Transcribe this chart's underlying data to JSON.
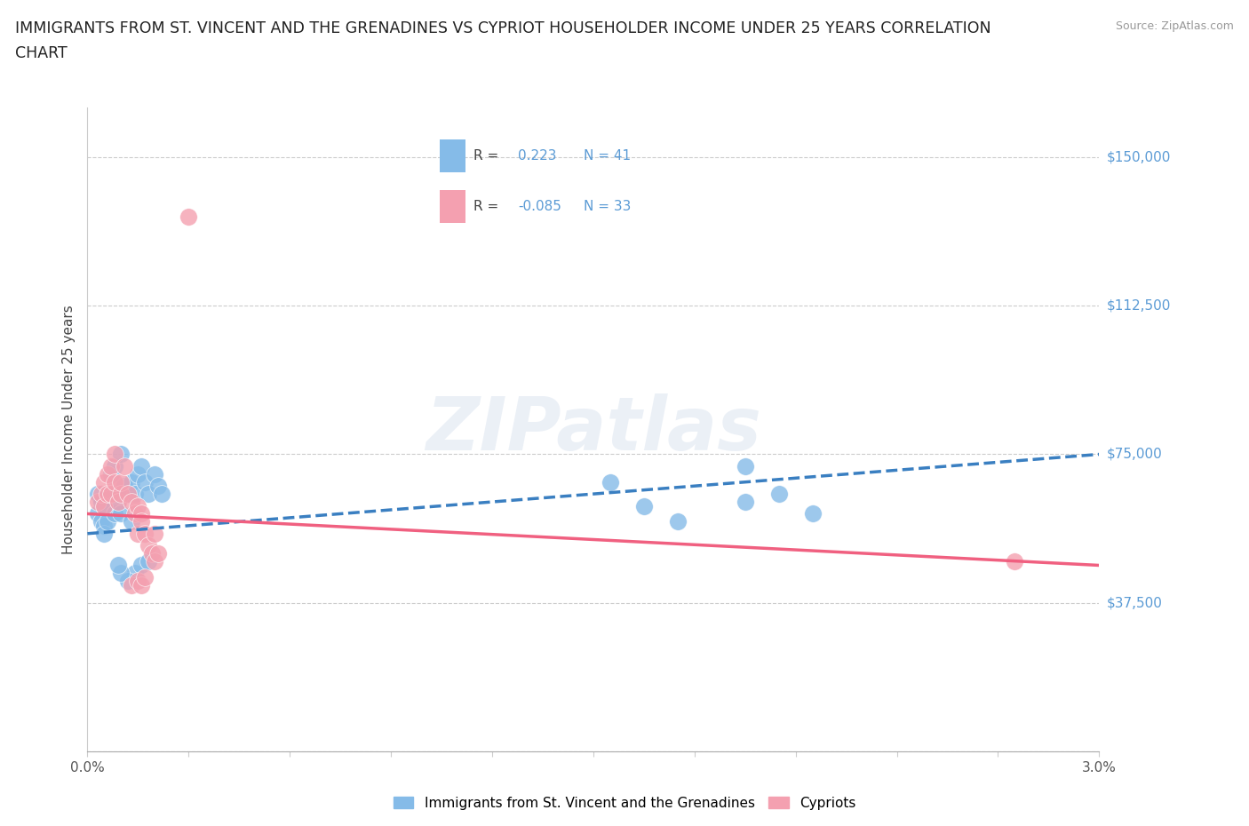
{
  "title_line1": "IMMIGRANTS FROM ST. VINCENT AND THE GRENADINES VS CYPRIOT HOUSEHOLDER INCOME UNDER 25 YEARS CORRELATION",
  "title_line2": "CHART",
  "source_text": "Source: ZipAtlas.com",
  "ylabel": "Householder Income Under 25 years",
  "xlim": [
    0.0,
    0.03
  ],
  "ylim": [
    0,
    162500
  ],
  "yticks": [
    0,
    37500,
    75000,
    112500,
    150000
  ],
  "ytick_labels": [
    "",
    "$37,500",
    "$75,000",
    "$112,500",
    "$150,000"
  ],
  "grid_color": "#cccccc",
  "watermark": "ZIPatlas",
  "blue_color": "#85BBE8",
  "pink_color": "#F4A0B0",
  "blue_line_color": "#3A7FC1",
  "pink_line_color": "#F06080",
  "blue_label": "Immigrants from St. Vincent and the Grenadines",
  "pink_label": "Cypriots",
  "blue_scatter_x": [
    0.0003,
    0.0003,
    0.0004,
    0.0004,
    0.0005,
    0.0005,
    0.0005,
    0.0006,
    0.0006,
    0.0007,
    0.0007,
    0.0008,
    0.0008,
    0.0009,
    0.001,
    0.001,
    0.0011,
    0.0012,
    0.0013,
    0.0013,
    0.0014,
    0.0015,
    0.0016,
    0.0017,
    0.0018,
    0.002,
    0.0021,
    0.0022,
    0.0014,
    0.0016,
    0.0018,
    0.0012,
    0.001,
    0.0009,
    0.0155,
    0.0165,
    0.0175,
    0.0195,
    0.0195,
    0.0205,
    0.0215
  ],
  "blue_scatter_y": [
    65000,
    60000,
    63000,
    58000,
    62000,
    57000,
    55000,
    65000,
    58000,
    70000,
    65000,
    72000,
    60000,
    63000,
    75000,
    60000,
    67000,
    65000,
    68000,
    58000,
    65000,
    70000,
    72000,
    68000,
    65000,
    70000,
    67000,
    65000,
    45000,
    47000,
    48000,
    43000,
    45000,
    47000,
    68000,
    62000,
    58000,
    72000,
    63000,
    65000,
    60000
  ],
  "pink_scatter_x": [
    0.0003,
    0.0004,
    0.0005,
    0.0005,
    0.0006,
    0.0006,
    0.0007,
    0.0007,
    0.0008,
    0.0008,
    0.0009,
    0.001,
    0.001,
    0.0011,
    0.0012,
    0.0013,
    0.0014,
    0.0015,
    0.0015,
    0.0016,
    0.0016,
    0.0017,
    0.0018,
    0.0019,
    0.002,
    0.002,
    0.0021,
    0.0013,
    0.0015,
    0.0016,
    0.0017,
    0.003,
    0.0275
  ],
  "pink_scatter_y": [
    63000,
    65000,
    68000,
    62000,
    70000,
    65000,
    72000,
    65000,
    75000,
    68000,
    63000,
    65000,
    68000,
    72000,
    65000,
    63000,
    60000,
    55000,
    62000,
    60000,
    58000,
    55000,
    52000,
    50000,
    48000,
    55000,
    50000,
    42000,
    43000,
    42000,
    44000,
    135000,
    48000
  ]
}
